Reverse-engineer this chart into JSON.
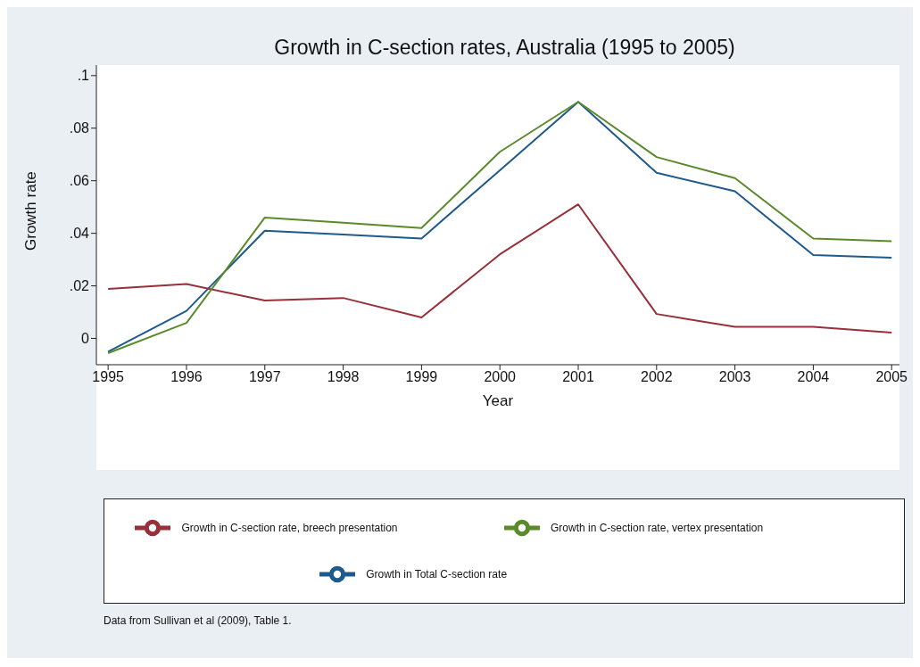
{
  "chart_data": {
    "type": "line",
    "title": "Growth in C-section rates, Australia (1995 to 2005)",
    "xlabel": "Year",
    "ylabel": "Growth rate",
    "x": [
      1995,
      1996,
      1997,
      1998,
      1999,
      2000,
      2001,
      2002,
      2003,
      2004,
      2005
    ],
    "series": [
      {
        "name": "Growth in Total C-section rate",
        "color": "#1f5a8c",
        "values": [
          -0.005,
          0.0105,
          0.041,
          0.0395,
          0.038,
          0.064,
          0.09,
          0.063,
          0.056,
          0.0317,
          0.0307
        ]
      },
      {
        "name": "Growth in C-section rate, breech presentation",
        "color": "#98303a",
        "values": [
          0.0188,
          0.0207,
          0.0144,
          0.0154,
          0.008,
          0.032,
          0.051,
          0.0093,
          0.0044,
          0.0044,
          0.0022
        ]
      },
      {
        "name": "Growth in C-section rate, vertex presentation",
        "color": "#5a8a2a",
        "values": [
          -0.0056,
          0.0059,
          0.046,
          0.044,
          0.042,
          0.071,
          0.09,
          0.069,
          0.061,
          0.038,
          0.037
        ]
      }
    ],
    "xlim": [
      1994.85,
      2005.1
    ],
    "xticks": [
      1995,
      1996,
      1997,
      1998,
      1999,
      2000,
      2001,
      2002,
      2003,
      2004,
      2005
    ],
    "ylim": [
      -0.01,
      0.104
    ],
    "yticks": [
      {
        "value": 0,
        "label": "0"
      },
      {
        "value": 0.02,
        "label": ".02"
      },
      {
        "value": 0.04,
        "label": ".04"
      },
      {
        "value": 0.06,
        "label": ".06"
      },
      {
        "value": 0.08,
        "label": ".08"
      },
      {
        "value": 0.1,
        "label": ".1"
      }
    ],
    "grid": false,
    "legend": "bottom",
    "marker": "none",
    "line_style": "solid",
    "annotations": [
      "Data from Sullivan et al (2009), Table 1."
    ]
  }
}
